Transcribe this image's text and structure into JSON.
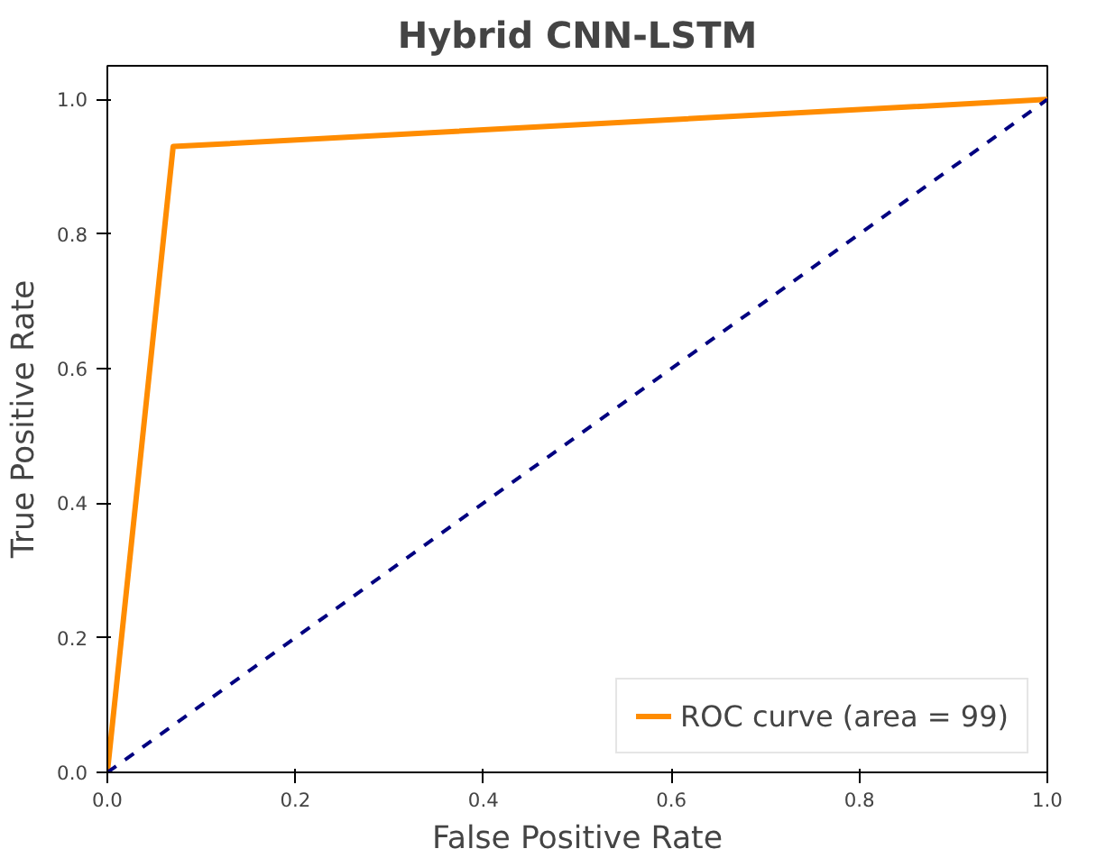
{
  "chart_data": {
    "type": "line",
    "title": "Hybrid CNN-LSTM",
    "xlabel": "False Positive Rate",
    "ylabel": "True Positive Rate",
    "series": [
      {
        "name": "ROC curve (area = 99)",
        "color": "#ff8c00",
        "x": [
          0,
          0.07,
          1
        ],
        "values": [
          0,
          0.93,
          1
        ],
        "line_style": "solid"
      },
      {
        "color": "#000080",
        "x": [
          0,
          1
        ],
        "values": [
          0,
          1
        ],
        "line_style": "dashed"
      }
    ],
    "xlim": [
      0,
      1
    ],
    "ylim": [
      0,
      1.05
    ],
    "xticks": [
      {
        "value": 0,
        "label": "0.0"
      },
      0.2,
      0.4,
      0.6,
      0.8,
      {
        "value": 1,
        "label": "1.0"
      }
    ],
    "yticks": [
      {
        "value": 0,
        "label": "0.0"
      },
      0.2,
      0.4,
      0.6,
      0.8,
      {
        "value": 1,
        "label": "1.0"
      }
    ],
    "grid": false,
    "legend": "bottom right",
    "marker": "none"
  }
}
